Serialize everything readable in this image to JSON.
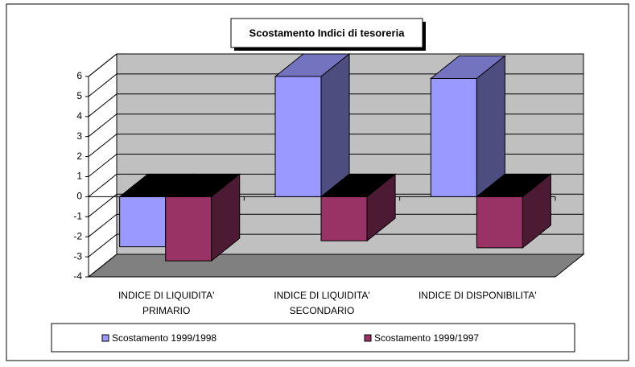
{
  "chart_data": {
    "type": "bar3d",
    "title": "Scostamento Indici di tesoreria",
    "categories": [
      [
        "INDICE DI LIQUIDITA'",
        "PRIMARIO"
      ],
      [
        "INDICE DI LIQUIDITA'",
        "SECONDARIO"
      ],
      [
        "INDICE DI DISPONIBILITA'"
      ]
    ],
    "series": [
      {
        "name": "Scostamento 1999/1998",
        "color": "#9999ff",
        "values": [
          -2.5,
          6.0,
          5.9
        ]
      },
      {
        "name": "Scostamento 1999/1997",
        "color": "#993366",
        "values": [
          -3.2,
          -2.2,
          -2.55
        ]
      }
    ],
    "ylim": [
      -4,
      6
    ],
    "yticks": [
      -4,
      -3,
      -2,
      -1,
      0,
      1,
      2,
      3,
      4,
      5,
      6
    ],
    "grid": true
  }
}
